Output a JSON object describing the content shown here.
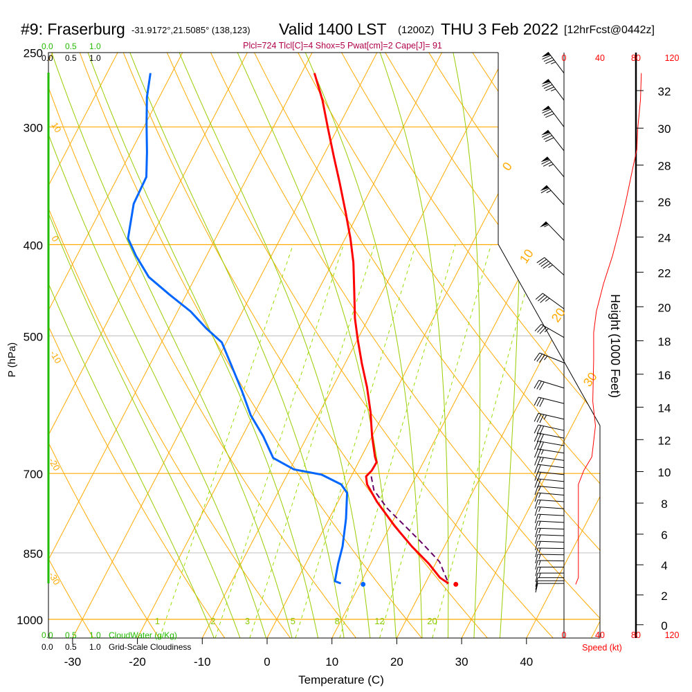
{
  "header": {
    "station": "#9: Fraserburg",
    "coords": "-31.9172°,21.5085° (138,123)",
    "valid": "Valid 1400 LST",
    "utc": "(1200Z)",
    "date": "THU 3 Feb 2022",
    "forecast": "[12hrFcst@0442z]"
  },
  "info_line": "Plcl=724 Tlcl[C]=4 Shox=5 Pwat[cm]=2 Cape[J]= 91",
  "colors": {
    "temperature": "#ff0000",
    "dewpoint": "#0066ff",
    "parcel": "#660066",
    "isotherm": "#ffaa00",
    "moist_adiabat": "#99cc00",
    "mixing_ratio": "#99dd00",
    "info": "#b0004a",
    "cloud": "#22bb00"
  },
  "cloud_scale": {
    "water_ticks": [
      "0.0",
      "0.5",
      "1.0"
    ],
    "cover_ticks": [
      "0.0",
      "0.5",
      "1.0"
    ],
    "water_label": "CloudWater (g/Kg)",
    "cover_label": "Grid-Scale Cloudiness"
  },
  "chart_data": {
    "type": "skew-t",
    "xlabel": "Temperature (C)",
    "ylabel": "P (hPa)",
    "height_label": "Height (1000 Feet)",
    "speed_label": "Speed (kt)",
    "temp_ticks": [
      -30,
      -20,
      -10,
      0,
      10,
      20,
      30,
      40
    ],
    "pressure_ticks": [
      250,
      300,
      400,
      500,
      700,
      850,
      1000
    ],
    "height_ticks": [
      0,
      2,
      4,
      6,
      8,
      10,
      12,
      14,
      16,
      18,
      20,
      22,
      24,
      26,
      28,
      30,
      32
    ],
    "speed_ticks": [
      0,
      40,
      80,
      120
    ],
    "xlim": [
      -34,
      50
    ],
    "plim": [
      1047,
      250
    ],
    "isotherm_labels": [
      "0",
      "10",
      "20",
      "30"
    ],
    "dry_adiabat_labels": [
      "10",
      "0",
      "-10",
      "-20",
      "-30"
    ],
    "mixing_ratio_labels": [
      "1",
      "2",
      "3",
      "5",
      "8",
      "12",
      "20"
    ],
    "temperature": {
      "p": [
        263,
        281,
        301,
        322,
        344,
        369,
        394,
        418,
        448,
        479,
        504,
        535,
        567,
        602,
        639,
        672,
        681,
        695,
        705,
        719,
        750,
        796,
        837,
        873,
        903,
        916
      ],
      "t": [
        -38.0,
        -34.6,
        -31.5,
        -28.4,
        -25.3,
        -22.1,
        -19.2,
        -16.8,
        -14.4,
        -12.1,
        -10.0,
        -7.4,
        -4.7,
        -2.2,
        0.0,
        2.1,
        2.8,
        2.7,
        2.3,
        3.1,
        6.0,
        10.7,
        15.0,
        19.0,
        21.8,
        23.6
      ]
    },
    "dewpoint": {
      "p": [
        263,
        279,
        298,
        319,
        339,
        362,
        394,
        411,
        433,
        452,
        471,
        491,
        508,
        539,
        572,
        607,
        639,
        674,
        693,
        702,
        719,
        734,
        782,
        837,
        873,
        911,
        916
      ],
      "t": [
        -63.3,
        -61.9,
        -59.8,
        -57.5,
        -55.6,
        -55.4,
        -53.5,
        -50.9,
        -47.2,
        -42.6,
        -38.0,
        -34.2,
        -30.7,
        -27.2,
        -23.7,
        -20.4,
        -16.8,
        -13.5,
        -9.4,
        -4.7,
        -0.9,
        0.7,
        2.6,
        4.3,
        5.0,
        5.9,
        7.0
      ]
    },
    "parcel": {
      "p": [
        705,
        729,
        763,
        796,
        830,
        869,
        916
      ],
      "t": [
        3.1,
        4.6,
        8.2,
        12.3,
        16.3,
        20.5,
        23.6
      ]
    },
    "surface": {
      "p": 918,
      "t": 24.8,
      "td": 10.5
    },
    "wind": {
      "p": [
        263,
        281,
        300,
        318,
        339,
        363,
        396,
        431,
        468,
        502,
        534,
        568,
        590,
        613,
        630,
        642,
        654,
        666,
        678,
        690,
        702,
        714,
        726,
        738,
        750,
        763,
        776,
        789,
        802,
        815,
        828,
        841,
        854,
        867,
        880,
        893,
        903,
        910,
        916
      ],
      "dir": [
        323,
        323,
        323,
        322,
        320,
        318,
        316,
        312,
        306,
        300,
        292,
        287,
        284,
        283,
        282,
        281,
        280,
        279,
        278,
        277,
        276,
        276,
        275,
        275,
        274,
        274,
        273,
        273,
        272,
        272,
        272,
        271,
        271,
        271,
        270,
        270,
        270,
        270,
        270
      ],
      "spd": [
        85,
        85,
        82,
        80,
        75,
        65,
        55,
        45,
        37,
        34,
        33,
        32,
        32,
        33,
        32,
        30,
        28,
        26,
        25,
        22,
        20,
        18,
        17,
        16,
        16,
        16,
        16,
        16,
        16,
        16,
        16,
        15,
        15,
        15,
        14,
        13,
        12,
        12,
        11
      ]
    },
    "speed_profile": {
      "p": [
        263,
        281,
        301,
        317,
        330,
        359,
        384,
        411,
        440,
        471,
        496,
        530,
        587,
        623,
        672,
        695,
        719,
        809,
        903,
        918
      ],
      "spd": [
        86,
        85,
        82,
        81,
        77,
        69,
        62,
        54,
        44,
        36,
        33,
        33,
        32,
        35,
        31,
        22,
        16,
        16,
        16,
        13
      ]
    }
  }
}
